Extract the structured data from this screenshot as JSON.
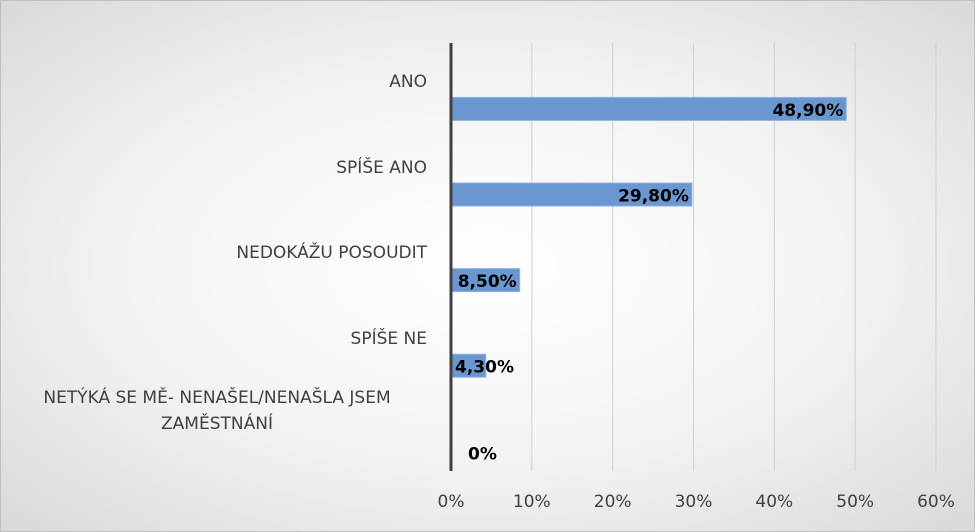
{
  "chart_data": {
    "type": "bar",
    "orientation": "horizontal",
    "categories": [
      "ANO",
      "SPÍŠE ANO",
      "NEDOKÁŽU POSOUDIT",
      "SPÍŠE NE",
      "NETÝKÁ SE MĚ- NENAŠEL/NENAŠLA JSEM ZAMĚSTNÁNÍ"
    ],
    "values": [
      48.9,
      29.8,
      8.5,
      4.3,
      0
    ],
    "value_labels": [
      "48,90%",
      "29,80%",
      "8,50%",
      "4,30%",
      "0%"
    ],
    "color": "#6a97cf",
    "xlim": [
      0,
      60
    ],
    "xticks": [
      {
        "value": 0,
        "label": "0%"
      },
      {
        "value": 10,
        "label": "10%"
      },
      {
        "value": 20,
        "label": "20%"
      },
      {
        "value": 30,
        "label": "30%"
      },
      {
        "value": 40,
        "label": "40%"
      },
      {
        "value": 50,
        "label": "50%"
      },
      {
        "value": 60,
        "label": "60%"
      }
    ],
    "grid": true
  }
}
